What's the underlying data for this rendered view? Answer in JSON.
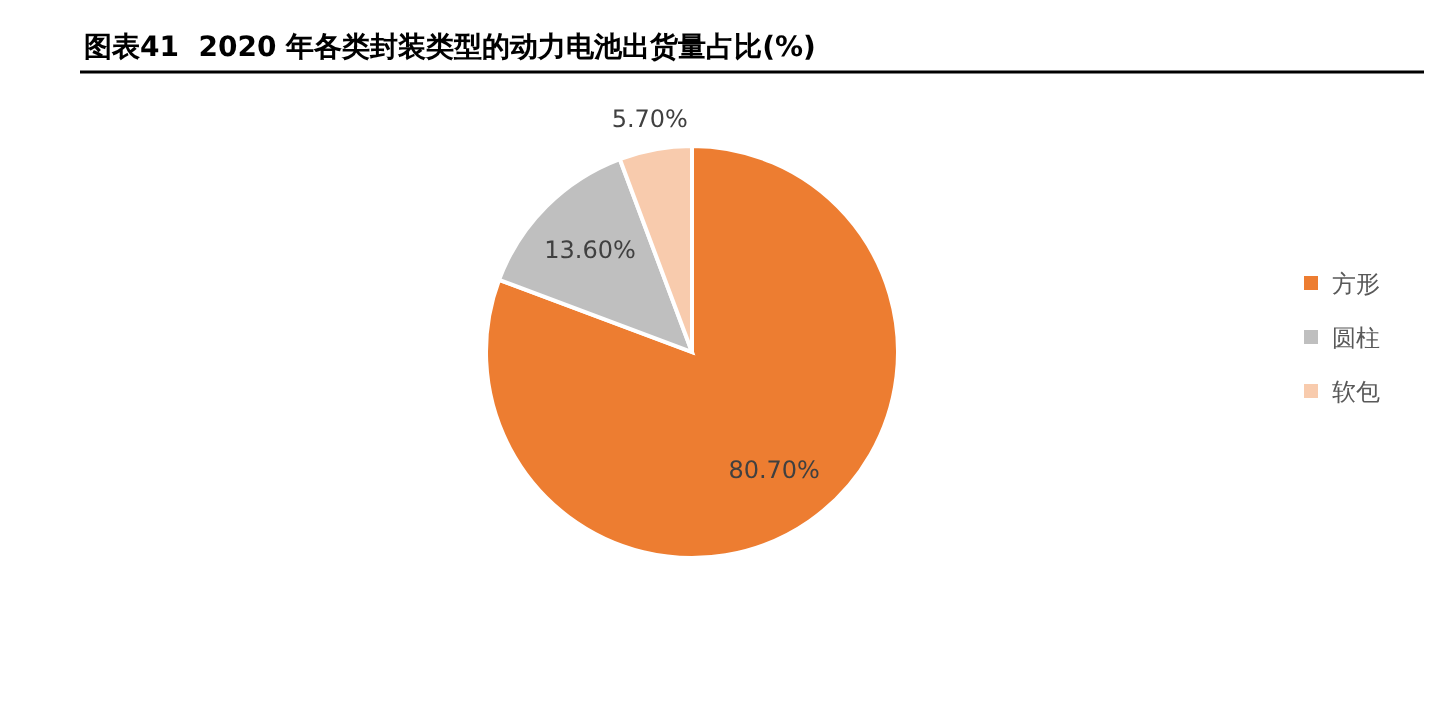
{
  "chart_data": {
    "type": "pie",
    "title": "图表41  2020 年各类封装类型的动力电池出货量占比(%)",
    "categories": [
      "方形",
      "圆柱",
      "软包"
    ],
    "values": [
      80.7,
      13.6,
      5.7
    ],
    "colors": [
      "#ed7d31",
      "#bfbfbf",
      "#f8cbad"
    ],
    "value_labels": [
      "80.70%",
      "13.60%",
      "5.70%"
    ],
    "legend": "right"
  }
}
